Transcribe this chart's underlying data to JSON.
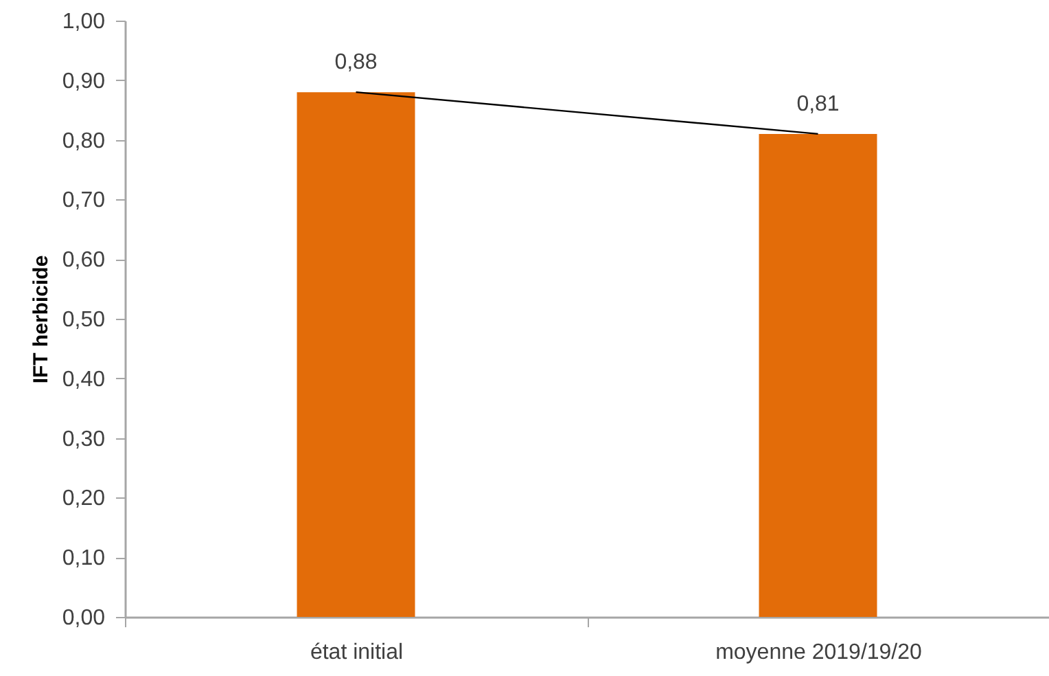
{
  "chart_data": {
    "type": "bar",
    "ylabel": "IFT herbicide",
    "categories": [
      "état initial",
      "moyenne 2019/19/20"
    ],
    "series": [
      {
        "color": "#e36c09",
        "values": [
          0.88,
          0.81
        ],
        "value_labels": [
          "0,88",
          "0,81"
        ]
      },
      {
        "type": "line",
        "color": "#000000",
        "values": [
          0.88,
          0.81
        ]
      }
    ],
    "ylim": [
      0,
      1.0
    ],
    "yticks": [
      {
        "value": 0,
        "label": "0,00"
      },
      {
        "value": 0.1,
        "label": "0,10"
      },
      {
        "value": 0.2,
        "label": "0,20"
      },
      {
        "value": 0.3,
        "label": "0,30"
      },
      {
        "value": 0.4,
        "label": "0,40"
      },
      {
        "value": 0.5,
        "label": "0,50"
      },
      {
        "value": 0.6,
        "label": "0,60"
      },
      {
        "value": 0.7,
        "label": "0,70"
      },
      {
        "value": 0.8,
        "label": "0,80"
      },
      {
        "value": 0.9,
        "label": "0,90"
      },
      {
        "value": 1.0,
        "label": "1,00"
      }
    ],
    "grid": false
  }
}
